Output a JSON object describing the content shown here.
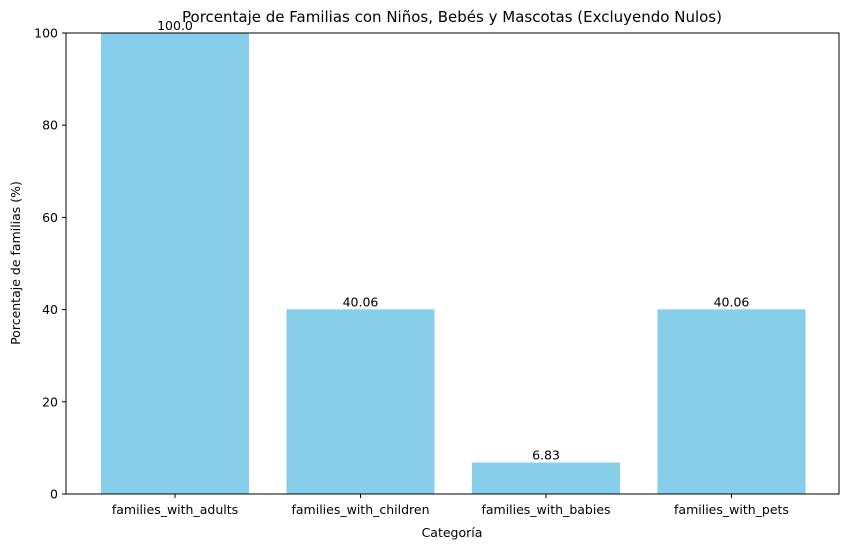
{
  "chart_data": {
    "type": "bar",
    "title": "Porcentaje de Familias con Niños, Bebés y Mascotas (Excluyendo Nulos)",
    "xlabel": "Categoría",
    "ylabel": "Porcentaje de familias (%)",
    "categories": [
      "families_with_adults",
      "families_with_children",
      "families_with_babies",
      "families_with_pets"
    ],
    "values": [
      100.0,
      40.06,
      6.83,
      40.06
    ],
    "data_labels": [
      "100.0",
      "40.06",
      "6.83",
      "40.06"
    ],
    "ylim": [
      0,
      100
    ],
    "yticks": [
      0,
      20,
      40,
      60,
      80,
      100
    ],
    "ytick_labels": [
      "0",
      "20",
      "40",
      "60",
      "80",
      "100"
    ],
    "grid": false,
    "bar_color": "#87ceeb"
  }
}
